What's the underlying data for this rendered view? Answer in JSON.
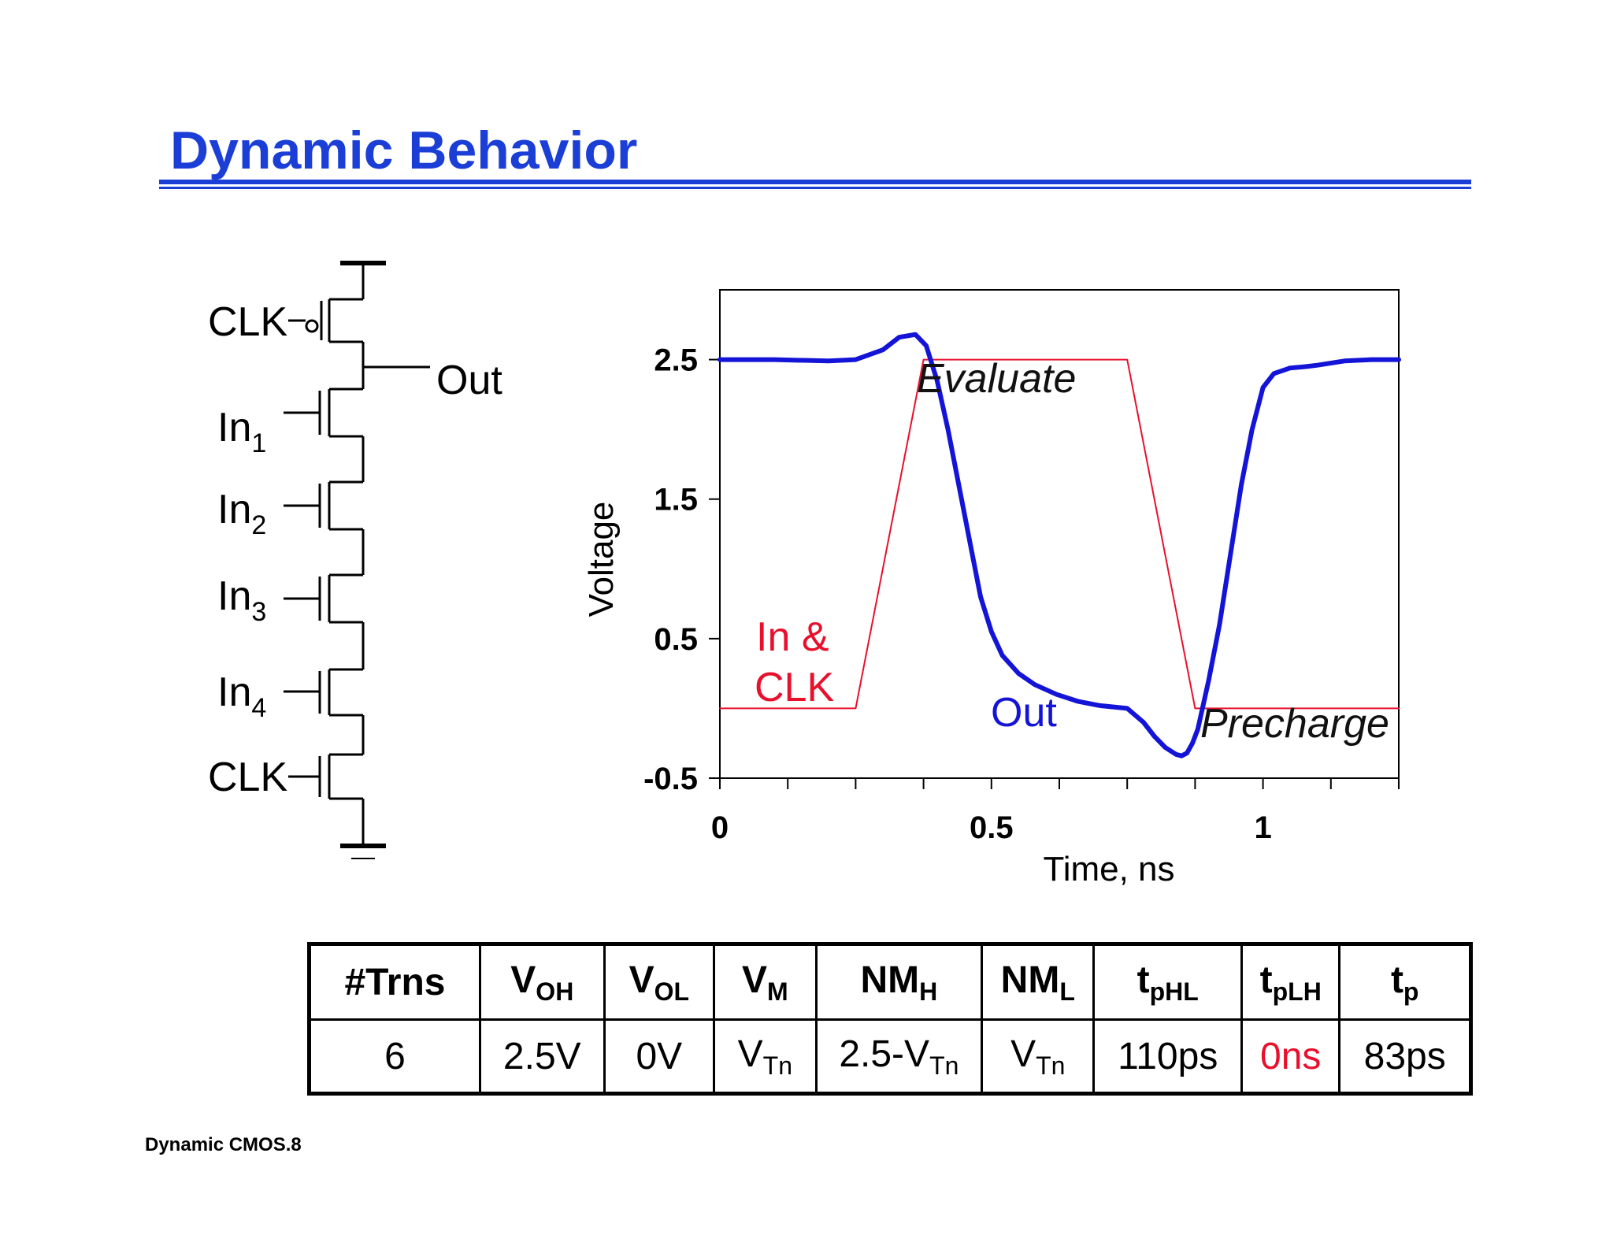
{
  "slide": {
    "title": "Dynamic Behavior",
    "footer": "Dynamic CMOS.8"
  },
  "schematic": {
    "labels": {
      "clk_top": "CLK",
      "out": "Out",
      "in1": "In",
      "in1_sub": "1",
      "in2": "In",
      "in2_sub": "2",
      "in3": "In",
      "in3_sub": "3",
      "in4": "In",
      "in4_sub": "4",
      "clk_bottom": "CLK"
    }
  },
  "chart_data": {
    "type": "line",
    "xlabel": "Time, ns",
    "ylabel": "Voltage",
    "xlim": [
      0,
      1.25
    ],
    "ylim": [
      -0.5,
      3.0
    ],
    "x_ticks": [
      {
        "v": 0,
        "label": "0"
      },
      {
        "v": 0.5,
        "label": "0.5"
      },
      {
        "v": 1,
        "label": "1"
      }
    ],
    "x_minor_ticks": [
      0,
      0.125,
      0.25,
      0.375,
      0.5,
      0.625,
      0.75,
      0.875,
      1,
      1.125,
      1.25
    ],
    "y_ticks": [
      {
        "v": 2.5,
        "label": "2.5"
      },
      {
        "v": 1.5,
        "label": "1.5"
      },
      {
        "v": 0.5,
        "label": "0.5"
      },
      {
        "v": -0.5,
        "label": "-0.5"
      }
    ],
    "grid": false,
    "series": [
      {
        "name": "In & CLK",
        "color": "#e8102c",
        "x": [
          0,
          0.25,
          0.375,
          0.75,
          0.875,
          1.25
        ],
        "y": [
          0,
          0,
          2.5,
          2.5,
          0,
          0
        ]
      },
      {
        "name": "Out",
        "color": "#1414d8",
        "x": [
          0,
          0.1,
          0.2,
          0.25,
          0.3,
          0.33,
          0.36,
          0.38,
          0.4,
          0.42,
          0.44,
          0.46,
          0.48,
          0.5,
          0.52,
          0.55,
          0.58,
          0.62,
          0.66,
          0.7,
          0.75,
          0.78,
          0.8,
          0.82,
          0.84,
          0.85,
          0.86,
          0.87,
          0.88,
          0.9,
          0.92,
          0.94,
          0.96,
          0.98,
          1.0,
          1.02,
          1.05,
          1.08,
          1.1,
          1.15,
          1.2,
          1.25
        ],
        "y": [
          2.5,
          2.5,
          2.49,
          2.5,
          2.57,
          2.66,
          2.68,
          2.6,
          2.35,
          2.0,
          1.6,
          1.2,
          0.8,
          0.55,
          0.38,
          0.25,
          0.17,
          0.1,
          0.05,
          0.02,
          0.0,
          -0.1,
          -0.2,
          -0.28,
          -0.33,
          -0.34,
          -0.32,
          -0.25,
          -0.15,
          0.2,
          0.6,
          1.1,
          1.6,
          2.0,
          2.3,
          2.4,
          2.44,
          2.45,
          2.46,
          2.49,
          2.5,
          2.5
        ]
      }
    ],
    "annotations": [
      {
        "text": "In &",
        "color": "#e8102c"
      },
      {
        "text": "CLK",
        "color": "#e8102c"
      },
      {
        "text": "Evaluate",
        "color": "#111111"
      },
      {
        "text": "Out",
        "color": "#1414d8"
      },
      {
        "text": "Precharge",
        "color": "#111111"
      }
    ]
  },
  "table": {
    "headers": [
      {
        "main": "#Trns",
        "sub": ""
      },
      {
        "main": "V",
        "sub": "OH"
      },
      {
        "main": "V",
        "sub": "OL"
      },
      {
        "main": "V",
        "sub": "M"
      },
      {
        "main": "NM",
        "sub": "H"
      },
      {
        "main": "NM",
        "sub": "L"
      },
      {
        "main": "t",
        "sub": "pHL"
      },
      {
        "main": "t",
        "sub": "pLH"
      },
      {
        "main": "t",
        "sub": "p"
      }
    ],
    "cells": [
      {
        "main": "6",
        "sub": ""
      },
      {
        "main": "2.5V",
        "sub": ""
      },
      {
        "main": "0V",
        "sub": ""
      },
      {
        "main": "V",
        "sub": "Tn"
      },
      {
        "main": "2.5-V",
        "sub": "Tn"
      },
      {
        "main": "V",
        "sub": "Tn"
      },
      {
        "main": "110ps",
        "sub": ""
      },
      {
        "main": "0ns",
        "sub": "",
        "color": "#e8102c"
      },
      {
        "main": "83ps",
        "sub": ""
      }
    ]
  }
}
